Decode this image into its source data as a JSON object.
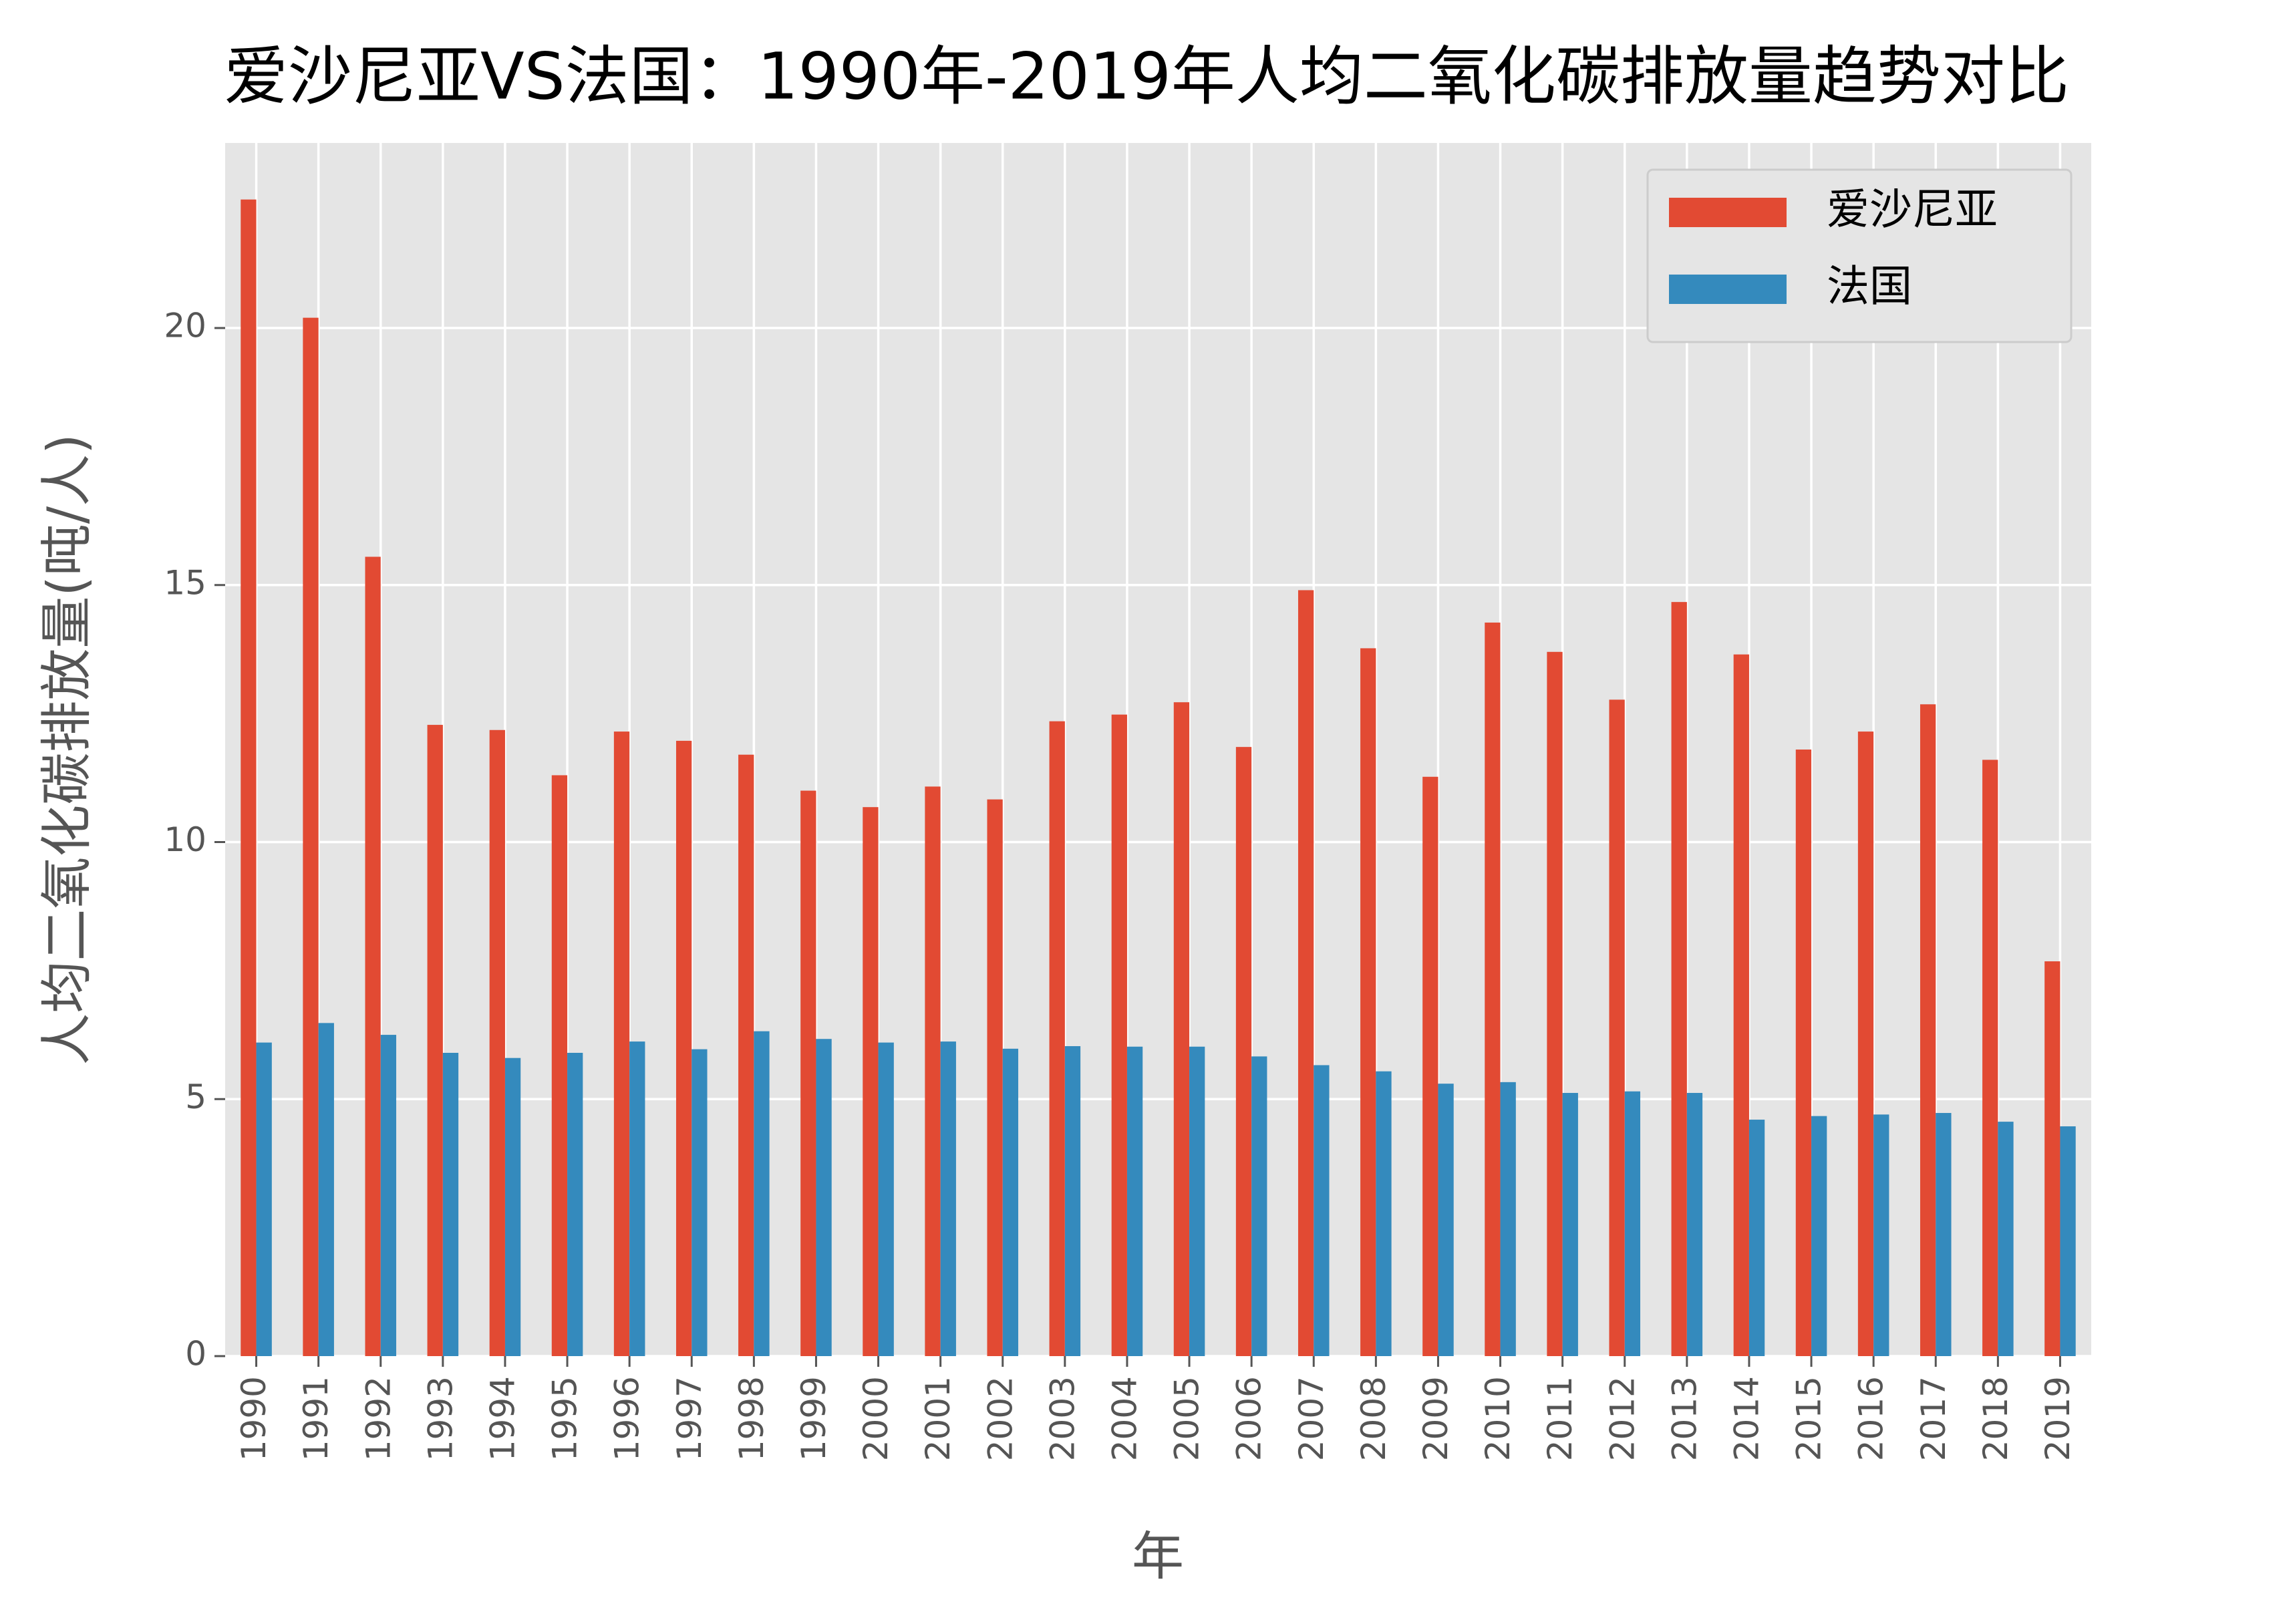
{
  "chart_data": {
    "type": "bar",
    "title": "爱沙尼亚VS法国：1990年-2019年人均二氧化碳排放量趋势对比",
    "xlabel": "年",
    "ylabel": "人均二氧化碳排放量(吨/人)",
    "categories": [
      "1990",
      "1991",
      "1992",
      "1993",
      "1994",
      "1995",
      "1996",
      "1997",
      "1998",
      "1999",
      "2000",
      "2001",
      "2002",
      "2003",
      "2004",
      "2005",
      "2006",
      "2007",
      "2008",
      "2009",
      "2010",
      "2011",
      "2012",
      "2013",
      "2014",
      "2015",
      "2016",
      "2017",
      "2018",
      "2019"
    ],
    "series": [
      {
        "name": "爱沙尼亚",
        "color": "#E24A33",
        "values": [
          22.5,
          20.2,
          15.55,
          12.28,
          12.18,
          11.3,
          12.15,
          11.97,
          11.7,
          11.0,
          10.68,
          11.08,
          10.83,
          12.35,
          12.48,
          12.72,
          11.85,
          14.9,
          13.77,
          11.27,
          14.27,
          13.7,
          12.77,
          14.67,
          13.65,
          11.8,
          12.15,
          12.68,
          11.6,
          7.68
        ]
      },
      {
        "name": "法国",
        "color": "#348ABD",
        "values": [
          6.1,
          6.48,
          6.25,
          5.9,
          5.8,
          5.9,
          6.12,
          5.97,
          6.32,
          6.17,
          6.1,
          6.12,
          5.98,
          6.03,
          6.02,
          6.02,
          5.83,
          5.66,
          5.54,
          5.3,
          5.33,
          5.12,
          5.15,
          5.12,
          4.6,
          4.67,
          4.7,
          4.73,
          4.56,
          4.47
        ]
      }
    ],
    "ylim": [
      0,
      23.6
    ],
    "yticks": [
      0,
      5,
      10,
      15,
      20
    ],
    "grid": true,
    "legend": "upper right"
  }
}
